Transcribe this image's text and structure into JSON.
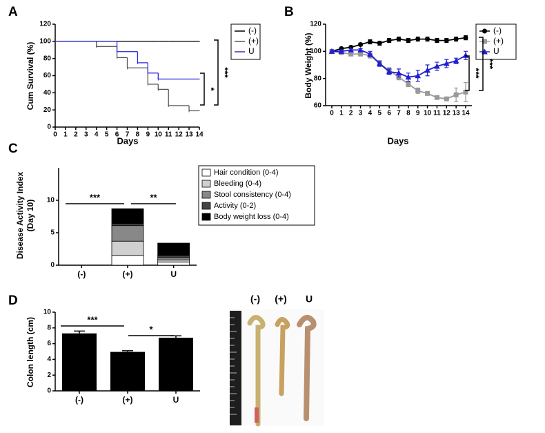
{
  "chart_data": [
    {
      "type": "step",
      "panel": "A",
      "xlabel": "Days",
      "ylabel": "Cum Survival (%)",
      "x": [
        0,
        1,
        2,
        3,
        4,
        5,
        6,
        7,
        8,
        9,
        10,
        11,
        12,
        13,
        14
      ],
      "xlim": [
        0,
        14
      ],
      "xticks": [
        0,
        1,
        2,
        3,
        4,
        5,
        6,
        7,
        8,
        9,
        10,
        11,
        12,
        13,
        14
      ],
      "ylim": [
        0,
        120
      ],
      "yticks": [
        0,
        20,
        40,
        60,
        80,
        100,
        120
      ],
      "series": [
        {
          "name": "(-)",
          "color": "#000000",
          "values": [
            100,
            100,
            100,
            100,
            100,
            100,
            100,
            100,
            100,
            100,
            100,
            100,
            100,
            100,
            100
          ]
        },
        {
          "name": "(+)",
          "color": "#555555",
          "values": [
            100,
            100,
            100,
            100,
            94,
            94,
            81,
            69,
            69,
            50,
            44,
            25,
            25,
            19,
            19
          ]
        },
        {
          "name": "U",
          "color": "#2a2ae0",
          "values": [
            100,
            100,
            100,
            100,
            100,
            100,
            88,
            88,
            75,
            63,
            56,
            56,
            56,
            56,
            56
          ]
        }
      ],
      "annotations": [
        "***",
        "*"
      ]
    },
    {
      "type": "line",
      "panel": "B",
      "xlabel": "Days",
      "ylabel": "Body Weight (%)",
      "x": [
        0,
        1,
        2,
        3,
        4,
        5,
        6,
        7,
        8,
        9,
        10,
        11,
        12,
        13,
        14
      ],
      "xlim": [
        0,
        14
      ],
      "xticks": [
        0,
        1,
        2,
        3,
        4,
        5,
        6,
        7,
        8,
        9,
        10,
        11,
        12,
        13,
        14
      ],
      "ylim": [
        60,
        120
      ],
      "yticks": [
        60,
        80,
        100,
        120
      ],
      "series": [
        {
          "name": "(-)",
          "color": "#000000",
          "marker": "circle",
          "values": [
            100,
            102,
            103,
            105,
            107,
            106,
            108,
            109,
            108,
            109,
            109,
            108,
            108,
            109,
            110
          ],
          "errors": [
            0.5,
            1,
            1,
            1,
            1.5,
            1.5,
            1.5,
            1.5,
            1.5,
            1.5,
            1.5,
            1.5,
            1.5,
            1.5,
            1.5
          ]
        },
        {
          "name": "(+)",
          "color": "#999999",
          "marker": "square",
          "values": [
            100,
            99,
            98,
            98,
            97,
            91,
            86,
            81,
            76,
            71,
            69,
            66,
            65,
            68,
            70
          ],
          "errors": [
            0.5,
            1,
            1,
            1,
            2,
            2,
            2,
            2,
            2,
            2,
            1,
            1,
            1,
            5,
            7
          ]
        },
        {
          "name": "U",
          "color": "#2020d0",
          "marker": "triangle",
          "values": [
            100,
            100,
            101,
            101,
            98,
            91,
            85,
            84,
            81,
            82,
            86,
            89,
            91,
            93,
            97
          ],
          "errors": [
            1,
            1,
            1,
            1,
            2,
            2,
            2,
            3,
            3,
            4,
            4,
            3,
            3,
            2,
            3
          ]
        }
      ],
      "annotations": [
        "***",
        "***"
      ]
    },
    {
      "type": "stacked-bar",
      "panel": "C",
      "ylabel": [
        "Disease Activity Index",
        "(Day 10)"
      ],
      "categories": [
        "(-)",
        "(+)",
        "U"
      ],
      "ylim": [
        0,
        15
      ],
      "yticks": [
        0,
        5,
        10
      ],
      "series": [
        {
          "name": "Hair condition (0-4)",
          "color": "#ffffff",
          "values": [
            0,
            1.5,
            0.5
          ]
        },
        {
          "name": "Bleeding (0-4)",
          "color": "#d0d0d0",
          "values": [
            0,
            2.2,
            0.3
          ]
        },
        {
          "name": "Stool consistency (0-4)",
          "color": "#888888",
          "values": [
            0,
            2.4,
            0.4
          ]
        },
        {
          "name": "Activity (0-2)",
          "color": "#444444",
          "values": [
            0,
            0.3,
            0.3
          ]
        },
        {
          "name": "Body weight loss (0-4)",
          "color": "#000000",
          "values": [
            0,
            2.3,
            1.9
          ]
        }
      ],
      "annotations": [
        "***",
        "**"
      ]
    },
    {
      "type": "bar",
      "panel": "D",
      "ylabel": "Colon length (cm)",
      "categories": [
        "(-)",
        "(+)",
        "U"
      ],
      "values": [
        7.3,
        4.95,
        6.75
      ],
      "errors": [
        0.3,
        0.15,
        0.25
      ],
      "color": "#000000",
      "ylim": [
        0,
        10
      ],
      "yticks": [
        0,
        2,
        4,
        6,
        8,
        10
      ],
      "annotations": [
        "***",
        "*"
      ]
    }
  ],
  "photo": {
    "labels": [
      "(-)",
      "(+)",
      "U"
    ]
  }
}
